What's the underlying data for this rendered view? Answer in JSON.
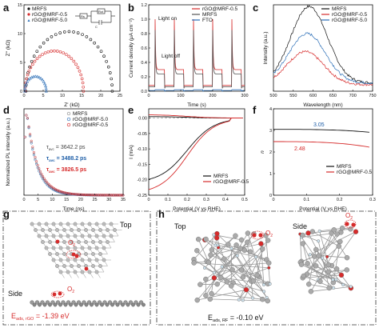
{
  "colors": {
    "black": "#111111",
    "red": "#d62b2b",
    "blue": "#2c6fb7",
    "gray": "#8c8c8c",
    "annotBlue": "#1f5fa8"
  },
  "panels": {
    "a": {
      "letter": "a",
      "xlabel": "Z' (kΩ)",
      "ylabel": "Z'' (kΩ)",
      "legend": [
        "MRFS",
        "rGO@MRF-0.5",
        "rGO@MRF-5.0"
      ],
      "circuit": {
        "rs": "Rs",
        "rct": "Rct",
        "cpe": "C"
      }
    },
    "b": {
      "letter": "b",
      "xlabel": "Time (s)",
      "ylabel": "Current density (μA cm⁻²)",
      "legend": [
        "rGO@MRF-0.5",
        "MRFS",
        "FTO"
      ],
      "annot_on": "Light on",
      "annot_off": "Light off"
    },
    "c": {
      "letter": "c",
      "xlabel": "Wavelength (nm)",
      "ylabel": "Intensity (a.u.)",
      "legend": [
        "MRFS",
        "rGO@MRF-0.5",
        "rGO@MRF-5.0"
      ]
    },
    "d": {
      "letter": "d",
      "xlabel": "Time (ns)",
      "ylabel": "Normalized PL intensity (a.u.)",
      "legend": [
        "MRFS",
        "rGO@MRF-5.0",
        "rGO@MRF-0.5"
      ],
      "tau_symbol": "τ",
      "tau_sub": "avc",
      "tau_vals": [
        "= 3642.2 ps",
        "= 3488.2 ps",
        "= 3826.5 ps"
      ]
    },
    "e": {
      "letter": "e",
      "xlabel": "Potential (V vs RHE)",
      "ylabel": "I (mA)",
      "legend": [
        "MRFS",
        "rGO@MRF-0.5"
      ]
    },
    "f": {
      "letter": "f",
      "xlabel": "Potential (V vs RHE)",
      "ylabel": "n",
      "legend": [
        "MRFS",
        "rGO@MRF-0.5"
      ],
      "val_black": "3.05",
      "val_red": "2.48"
    },
    "g": {
      "letter": "g",
      "top": "Top",
      "side": "Side",
      "o2": "O",
      "o2sub": "2",
      "energy": "E",
      "energy_sub": "ads, rGO",
      "energy_val": " = -1.39 eV"
    },
    "h": {
      "letter": "h",
      "top": "Top",
      "side": "Side",
      "o2": "O",
      "o2sub": "2",
      "energy": "E",
      "energy_sub": "ads, RF",
      "energy_val": " = -0.10 eV"
    }
  },
  "chart_data": [
    {
      "panel": "a",
      "type": "scatter",
      "xlabel": "Z' (kΩ)",
      "ylabel": "Z'' (kΩ)",
      "xlim": [
        0,
        25
      ],
      "ylim": [
        0,
        15
      ],
      "xticks": [
        0,
        5,
        10,
        15,
        20,
        25
      ],
      "yticks": [
        0,
        5,
        10,
        15
      ],
      "series": [
        {
          "name": "MRFS",
          "shape": "semicircle",
          "x_start": 0.5,
          "x_end": 23.0
        },
        {
          "name": "rGO@MRF-0.5",
          "shape": "semicircle",
          "x_start": 0.3,
          "x_end": 15.5
        },
        {
          "name": "rGO@MRF-5.0",
          "shape": "semicircle",
          "x_start": 0.2,
          "x_end": 5.8
        }
      ]
    },
    {
      "panel": "b",
      "type": "line",
      "xlabel": "Time (s)",
      "ylabel": "Current density (μA cm⁻²)",
      "xlim": [
        0,
        300
      ],
      "ylim": [
        0,
        1.2
      ],
      "xticks": [
        0,
        100,
        200,
        300
      ],
      "yticks": [
        0.0,
        0.2,
        0.4,
        0.6,
        0.8,
        1.0,
        1.2
      ],
      "light_on_times": [
        20,
        80,
        140,
        200,
        260
      ],
      "period_on": 30,
      "series": [
        {
          "name": "rGO@MRF-0.5",
          "spike": 1.0,
          "plateau": 0.3,
          "dark": 0.08
        },
        {
          "name": "MRFS",
          "spike": 0.85,
          "plateau": 0.24,
          "dark": 0.06
        },
        {
          "name": "FTO",
          "spike": 0.02,
          "plateau": 0.02,
          "dark": 0.01
        }
      ]
    },
    {
      "panel": "c",
      "type": "line",
      "xlabel": "Wavelength (nm)",
      "ylabel": "Intensity (a.u.)",
      "xlim": [
        500,
        750
      ],
      "xticks": [
        500,
        550,
        600,
        650,
        700,
        750
      ],
      "series": [
        {
          "name": "MRFS",
          "peak_x": 590,
          "peak_y": 0.93,
          "width": 65,
          "base": 0.1
        },
        {
          "name": "rGO@MRF-0.5",
          "peak_x": 580,
          "peak_y": 0.4,
          "width": 65,
          "base": 0.08
        },
        {
          "name": "rGO@MRF-5.0",
          "peak_x": 585,
          "peak_y": 0.6,
          "width": 65,
          "base": 0.1
        }
      ]
    },
    {
      "panel": "d",
      "type": "scatter",
      "xlabel": "Time (ns)",
      "ylabel": "Normalized PL intensity (a.u.)",
      "xlim": [
        0,
        35
      ],
      "xticks": [
        0,
        5,
        10,
        15,
        20,
        25,
        30,
        35
      ],
      "series": [
        {
          "name": "MRFS",
          "peak_t": 1.0,
          "tau_ns": 3.64
        },
        {
          "name": "rGO@MRF-5.0",
          "peak_t": 1.0,
          "tau_ns": 3.49
        },
        {
          "name": "rGO@MRF-0.5",
          "peak_t": 1.0,
          "tau_ns": 3.83
        }
      ]
    },
    {
      "panel": "e",
      "type": "line",
      "xlabel": "Potential (V vs RHE)",
      "ylabel": "I (mA)",
      "xlim": [
        0,
        0.5
      ],
      "ylim": [
        -0.25,
        0.03
      ],
      "xticks": [
        0.0,
        0.1,
        0.2,
        0.3,
        0.4,
        0.5
      ],
      "yticks": [
        0.0,
        -0.05,
        -0.1,
        -0.15,
        -0.2,
        -0.25
      ],
      "series": [
        {
          "name": "MRFS",
          "disk_at_0": -0.21,
          "onset": 0.43,
          "ring": 0.005
        },
        {
          "name": "rGO@MRF-0.5",
          "disk_at_0": -0.245,
          "onset": 0.43,
          "ring": 0.011
        }
      ]
    },
    {
      "panel": "f",
      "type": "line",
      "xlabel": "Potential (V vs RHE)",
      "ylabel": "n",
      "xlim": [
        0.0,
        0.3
      ],
      "ylim": [
        0,
        4
      ],
      "xticks": [
        0.0,
        0.1,
        0.2,
        0.3
      ],
      "yticks": [
        0,
        1,
        2,
        3,
        4
      ],
      "series": [
        {
          "name": "MRFS",
          "start": 3.05,
          "end": 2.9
        },
        {
          "name": "rGO@MRF-0.5",
          "start": 2.48,
          "end": 2.2
        }
      ]
    }
  ]
}
